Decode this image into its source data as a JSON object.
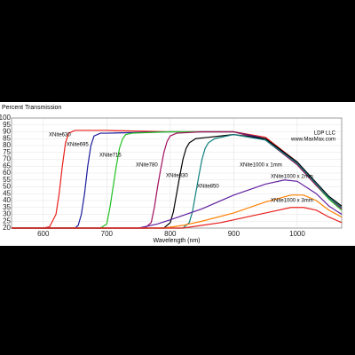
{
  "chart_data": {
    "type": "line",
    "ylabel": "Percent Transmission",
    "xlabel": "Wavelength (nm)",
    "notes": [
      "LDP LLC",
      "www.MaxMax.com"
    ],
    "xlim": [
      550,
      1070
    ],
    "ylim": [
      20,
      100
    ],
    "xticks": [
      600,
      700,
      800,
      900,
      1000
    ],
    "yticks": [
      20,
      25,
      30,
      35,
      40,
      45,
      50,
      55,
      60,
      65,
      70,
      75,
      80,
      85,
      90,
      95,
      100
    ],
    "grid": true,
    "series": [
      {
        "name": "XNite630",
        "color": "#e8201c",
        "x": [
          550,
          600,
          610,
          620,
          625,
          630,
          635,
          640,
          650,
          700,
          800,
          900,
          950,
          1000,
          1030,
          1050,
          1070
        ],
        "values": [
          20,
          20,
          21,
          30,
          45,
          65,
          82,
          89,
          91,
          91,
          90,
          90,
          86,
          68,
          52,
          42,
          35
        ]
      },
      {
        "name": "XNite695",
        "color": "#1c1c9c",
        "x": [
          550,
          650,
          655,
          660,
          665,
          670,
          675,
          680,
          690,
          700,
          800,
          900,
          950,
          1000,
          1030,
          1050,
          1070
        ],
        "values": [
          20,
          20,
          22,
          30,
          45,
          65,
          80,
          87,
          89,
          89,
          90,
          90,
          85,
          67,
          52,
          42,
          34
        ]
      },
      {
        "name": "XNite715",
        "color": "#22c022",
        "x": [
          550,
          690,
          700,
          705,
          710,
          715,
          720,
          725,
          730,
          740,
          800,
          900,
          950,
          1000,
          1030,
          1050,
          1070
        ],
        "values": [
          20,
          20,
          23,
          35,
          50,
          65,
          78,
          85,
          88,
          89,
          90,
          90,
          84,
          66,
          51,
          41,
          33
        ]
      },
      {
        "name": "XNite780",
        "color": "#a0105e",
        "x": [
          550,
          760,
          770,
          775,
          780,
          785,
          790,
          795,
          800,
          810,
          850,
          900,
          950,
          1000,
          1030,
          1050,
          1070
        ],
        "values": [
          20,
          20,
          24,
          35,
          50,
          63,
          75,
          83,
          87,
          89,
          90,
          90,
          84,
          66,
          51,
          42,
          34
        ]
      },
      {
        "name": "XNite830",
        "color": "#000000",
        "x": [
          550,
          790,
          800,
          805,
          810,
          815,
          820,
          825,
          830,
          840,
          860,
          900,
          950,
          1000,
          1030,
          1050,
          1070
        ],
        "values": [
          20,
          20,
          24,
          32,
          45,
          58,
          70,
          78,
          82,
          85,
          86,
          88,
          85,
          68,
          53,
          43,
          36
        ]
      },
      {
        "name": "XNite850",
        "color": "#108080",
        "x": [
          550,
          820,
          830,
          835,
          840,
          845,
          850,
          855,
          860,
          870,
          880,
          900,
          950,
          1000,
          1030,
          1050,
          1070
        ],
        "values": [
          20,
          20,
          24,
          32,
          45,
          58,
          70,
          78,
          82,
          85,
          86,
          88,
          84,
          67,
          52,
          42,
          35
        ]
      },
      {
        "name": "XNite1000 x 1mm",
        "color": "#6020a0",
        "x": [
          550,
          750,
          780,
          800,
          850,
          900,
          950,
          980,
          1000,
          1030,
          1050,
          1070
        ],
        "values": [
          20,
          20,
          23,
          26,
          34,
          44,
          52,
          55,
          54,
          45,
          36,
          30
        ]
      },
      {
        "name": "XNite1000 x 2mm",
        "color": "#ff8000",
        "x": [
          550,
          790,
          820,
          850,
          900,
          950,
          990,
          1010,
          1030,
          1050,
          1070
        ],
        "values": [
          20,
          20,
          22,
          25,
          31,
          39,
          44,
          44,
          40,
          33,
          28
        ]
      },
      {
        "name": "XNite1000 x 3mm",
        "color": "#e8201c",
        "x": [
          550,
          820,
          850,
          880,
          920,
          960,
          990,
          1010,
          1030,
          1050,
          1070
        ],
        "values": [
          20,
          20,
          22,
          24,
          28,
          32,
          35,
          35,
          33,
          28,
          24
        ]
      }
    ]
  }
}
